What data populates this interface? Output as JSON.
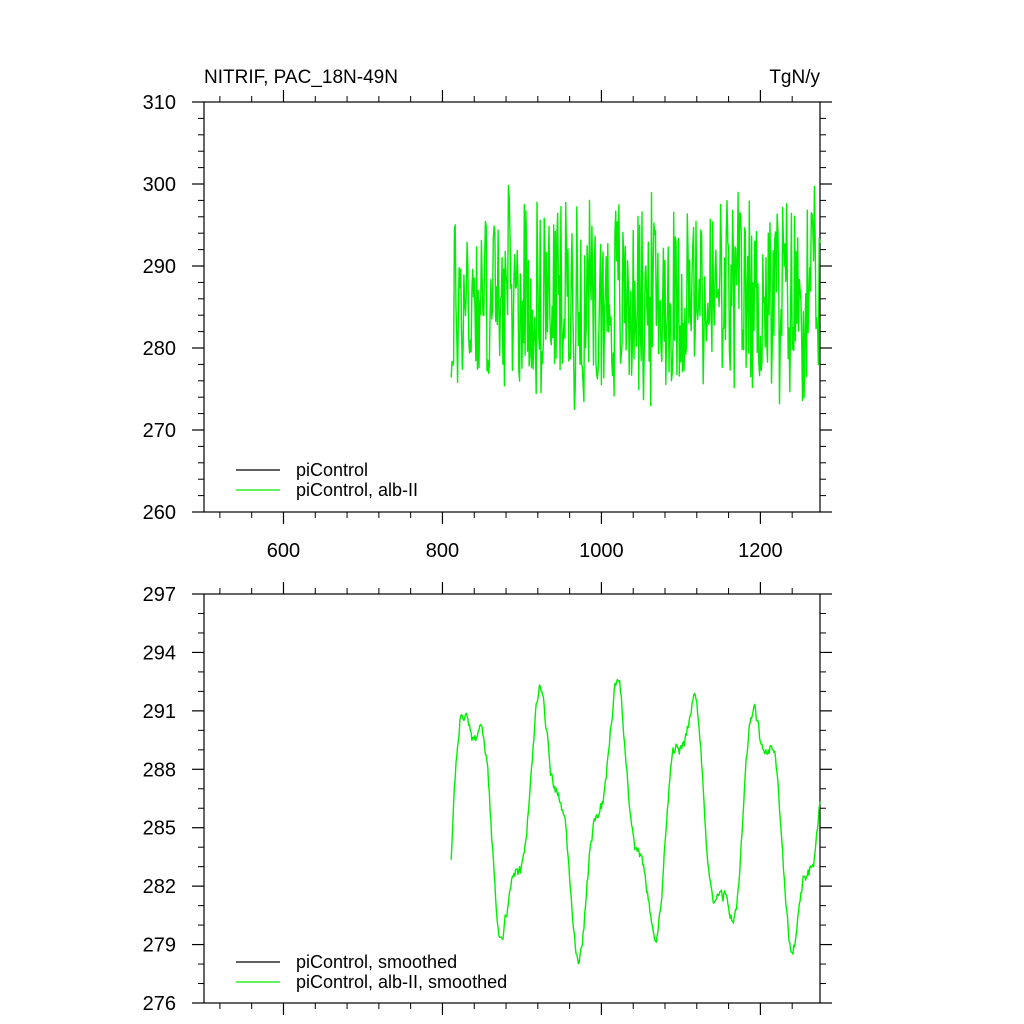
{
  "chart_data": [
    {
      "type": "line",
      "title_left": "NITRIF, PAC_18N-49N",
      "title_right": "TgN/y",
      "xlim": [
        500,
        1275
      ],
      "ylim": [
        260,
        310
      ],
      "x_ticks": [
        600,
        800,
        1000,
        1200
      ],
      "y_ticks": [
        260,
        270,
        280,
        290,
        300,
        310
      ],
      "x_tick_labels": [
        "600",
        "800",
        "1000",
        "1200"
      ],
      "y_tick_labels": [
        "260",
        "270",
        "280",
        "290",
        "300",
        "310"
      ],
      "legend_position": "bottom-left",
      "series": [
        {
          "name": "piControl",
          "color": "#000000",
          "x_start": 0,
          "values": []
        },
        {
          "name": "piControl, alb-II",
          "color": "#00ee00",
          "x_start": 811,
          "x_end": 1275,
          "approx_mean": 286,
          "approx_min": 268,
          "approx_max": 302
        }
      ]
    },
    {
      "type": "line",
      "xlim": [
        500,
        1275
      ],
      "ylim": [
        276,
        297
      ],
      "x_ticks": [
        600,
        800,
        1000,
        1200
      ],
      "y_ticks": [
        276,
        279,
        282,
        285,
        288,
        291,
        294,
        297
      ],
      "y_tick_labels": [
        "276",
        "279",
        "282",
        "285",
        "288",
        "291",
        "294",
        "297"
      ],
      "legend_position": "bottom-left",
      "series": [
        {
          "name": "piControl, smoothed",
          "color": "#000000",
          "values": []
        },
        {
          "name": "piControl, alb-II, smoothed",
          "color": "#00ee00",
          "x_start": 811,
          "x_end": 1275,
          "approx_min": 277,
          "approx_max": 294
        }
      ]
    }
  ]
}
